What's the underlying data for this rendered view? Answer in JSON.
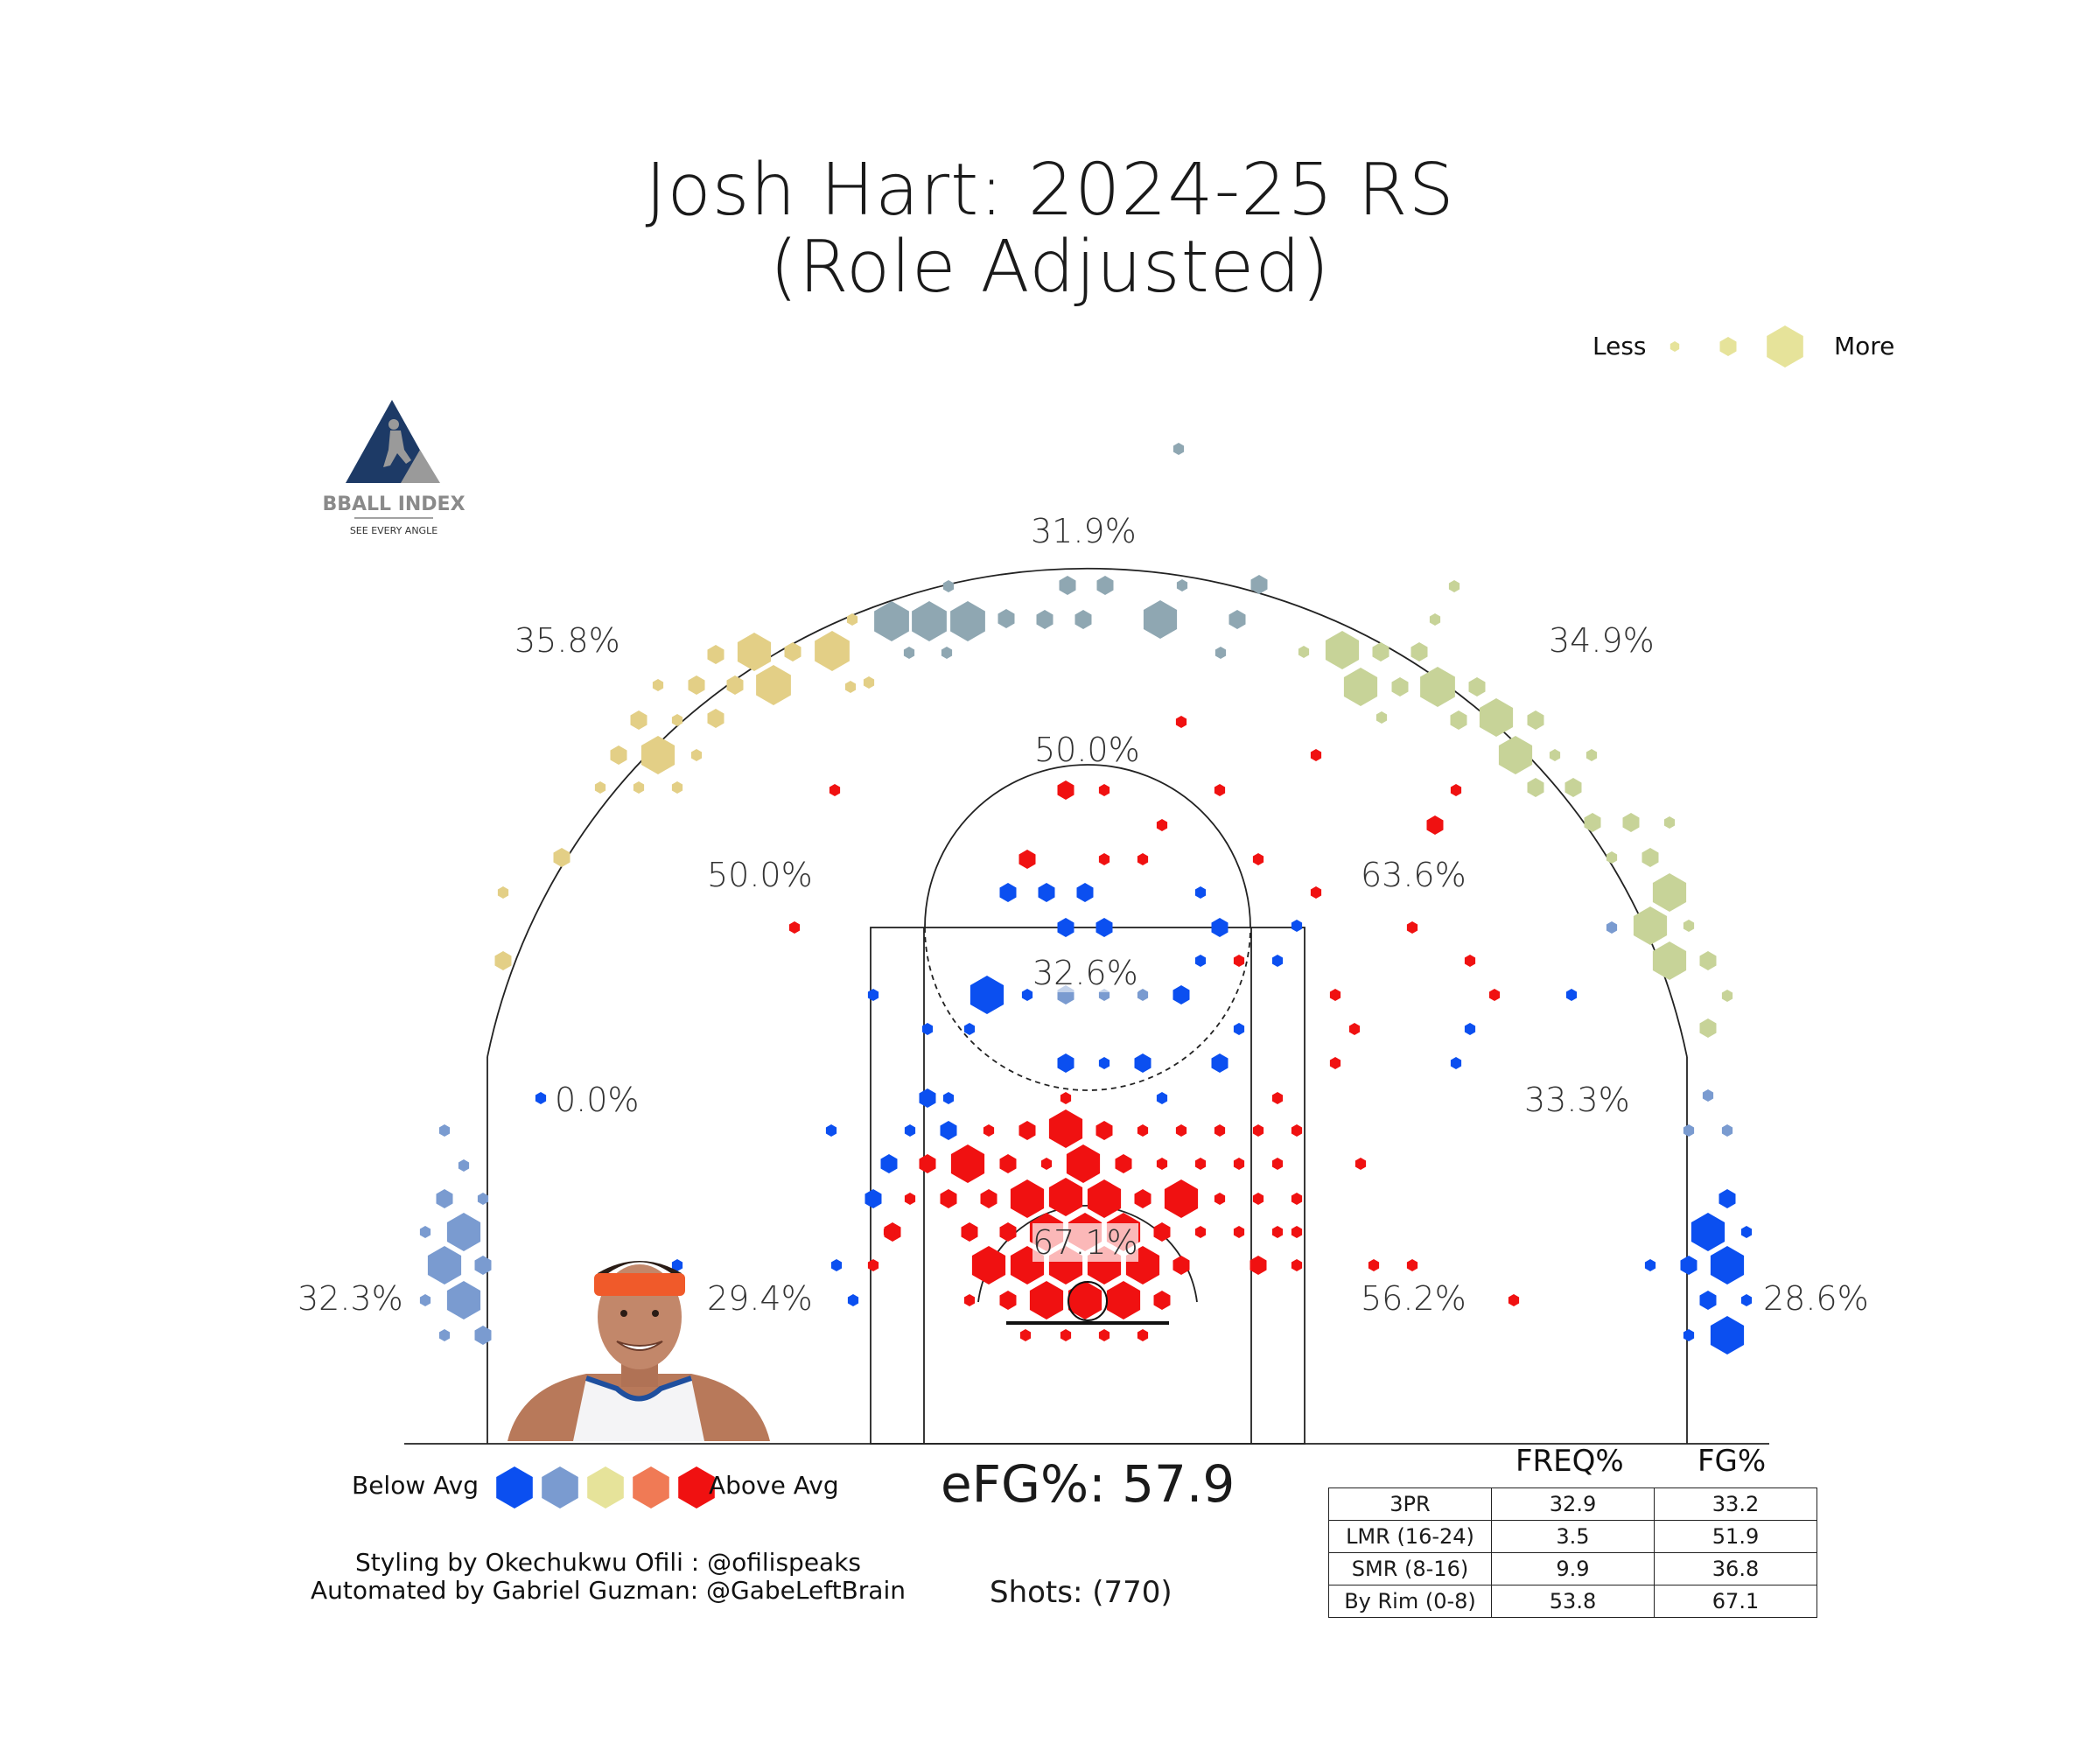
{
  "title": {
    "line1": "Josh Hart: 2024-25 RS",
    "line2": "(Role Adjusted)"
  },
  "size_legend": {
    "less": "Less",
    "more": "More"
  },
  "logo": {
    "name": "BBALL INDEX",
    "tagline": "SEE EVERY ANGLE"
  },
  "colors": {
    "below_avg_strong": "#0b4ff0",
    "below_avg": "#7a9bd0",
    "average": "#e6e39a",
    "above_avg": "#f07a55",
    "above_avg_strong": "#f01111",
    "three_pt_left": "#e3cf86",
    "three_pt_top": "#8fa7b2",
    "three_pt_right": "#c7d398",
    "court_line": "#222222"
  },
  "chart_data": {
    "type": "heatmap",
    "title": "Josh Hart: 2024-25 RS (Role Adjusted)",
    "zones": [
      {
        "zone": "Left Corner 3",
        "fg_pct": "32.3%"
      },
      {
        "zone": "Left Wing 3",
        "fg_pct": "35.8%"
      },
      {
        "zone": "Top 3",
        "fg_pct": "31.9%"
      },
      {
        "zone": "Right Wing 3",
        "fg_pct": "34.9%"
      },
      {
        "zone": "Right Corner 3",
        "fg_pct": "28.6%"
      },
      {
        "zone": "Top Long Mid",
        "fg_pct": "50.0%"
      },
      {
        "zone": "Left Long Mid",
        "fg_pct": "50.0%"
      },
      {
        "zone": "Right Long Mid",
        "fg_pct": "63.6%"
      },
      {
        "zone": "Left Baseline Long Mid",
        "fg_pct": "0.0%"
      },
      {
        "zone": "Right Baseline Long Mid",
        "fg_pct": "33.3%"
      },
      {
        "zone": "Free Throw Area",
        "fg_pct": "32.6%"
      },
      {
        "zone": "Left Short Mid",
        "fg_pct": "29.4%"
      },
      {
        "zone": "Right Short Mid",
        "fg_pct": "56.2%"
      },
      {
        "zone": "Restricted Area",
        "fg_pct": "67.1%"
      }
    ],
    "color_legend": [
      "Below Avg",
      "Above Avg"
    ],
    "size_legend": [
      "Less",
      "More"
    ],
    "efg": "eFG%: 57.9",
    "shots": "Shots: (770)",
    "table": {
      "columns": [
        "FREQ%",
        "FG%"
      ],
      "rows": [
        {
          "label": "3PR",
          "freq": "32.9",
          "fg": "33.2"
        },
        {
          "label": "LMR (16-24)",
          "freq": "3.5",
          "fg": "51.9"
        },
        {
          "label": "SMR (8-16)",
          "freq": "9.9",
          "fg": "36.8"
        },
        {
          "label": "By Rim (0-8)",
          "freq": "53.8",
          "fg": "67.1"
        }
      ]
    }
  },
  "color_legend": {
    "below": "Below Avg",
    "above": "Above Avg"
  },
  "efg_text": "eFG%: 57.9",
  "shots_text": "Shots: (770)",
  "credits": {
    "line1": "Styling by Okechukwu Ofili : @ofilispeaks",
    "line2": "Automated by Gabriel Guzman: @GabeLeftBrain"
  },
  "table_headers": {
    "freq": "FREQ%",
    "fg": "FG%"
  },
  "table_rows": [
    {
      "label": "3PR",
      "freq": "32.9",
      "fg": "33.2"
    },
    {
      "label": "LMR (16-24)",
      "freq": "3.5",
      "fg": "51.9"
    },
    {
      "label": "SMR (8-16)",
      "freq": "9.9",
      "fg": "36.8"
    },
    {
      "label": "By Rim (0-8)",
      "freq": "53.8",
      "fg": "67.1"
    }
  ]
}
